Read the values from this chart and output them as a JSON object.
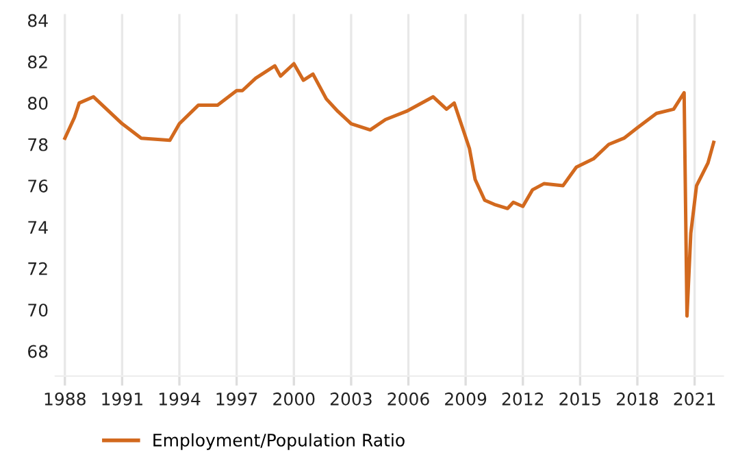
{
  "chart_data": {
    "type": "line",
    "x": [
      1988.0,
      1988.5,
      1988.75,
      1989.5,
      1991.0,
      1992.0,
      1993.5,
      1994.0,
      1995.0,
      1996.0,
      1997.0,
      1997.3,
      1998.0,
      1999.0,
      1999.3,
      2000.0,
      2000.5,
      2001.0,
      2001.7,
      2002.3,
      2003.0,
      2004.0,
      2004.8,
      2005.9,
      2007.3,
      2008.0,
      2008.4,
      2008.8,
      2009.2,
      2009.5,
      2010.0,
      2010.5,
      2011.2,
      2011.5,
      2012.0,
      2012.5,
      2013.1,
      2014.1,
      2014.8,
      2015.7,
      2016.5,
      2017.3,
      2018.0,
      2019.0,
      2019.9,
      2020.45,
      2020.6,
      2020.8,
      2021.1,
      2021.7,
      2022.0
    ],
    "series": [
      {
        "name": "Employment/Population Ratio",
        "color": "#d2691e",
        "values": [
          78.3,
          79.3,
          80.0,
          80.3,
          79.0,
          78.3,
          78.2,
          79.0,
          79.9,
          79.9,
          80.6,
          80.6,
          81.2,
          81.8,
          81.3,
          81.9,
          81.1,
          81.4,
          80.2,
          79.6,
          79.0,
          78.7,
          79.2,
          79.6,
          80.3,
          79.7,
          80.0,
          78.9,
          77.8,
          76.3,
          75.3,
          75.1,
          74.9,
          75.2,
          75.0,
          75.8,
          76.1,
          76.0,
          76.9,
          77.3,
          78.0,
          78.3,
          78.8,
          79.5,
          79.7,
          80.5,
          69.7,
          73.7,
          76.0,
          77.1,
          78.1
        ]
      }
    ],
    "xlim": [
      1987.5,
      2022.5
    ],
    "xticks": [
      1988,
      1991,
      1994,
      1997,
      2000,
      2003,
      2006,
      2009,
      2012,
      2015,
      2018,
      2021
    ],
    "ylim": [
      66.8,
      84.3
    ],
    "yticks": [
      68,
      70,
      72,
      74,
      76,
      78,
      80,
      82,
      84
    ],
    "grid": "x",
    "legend": "bottom left",
    "marker": "none",
    "line_style": "solid"
  }
}
